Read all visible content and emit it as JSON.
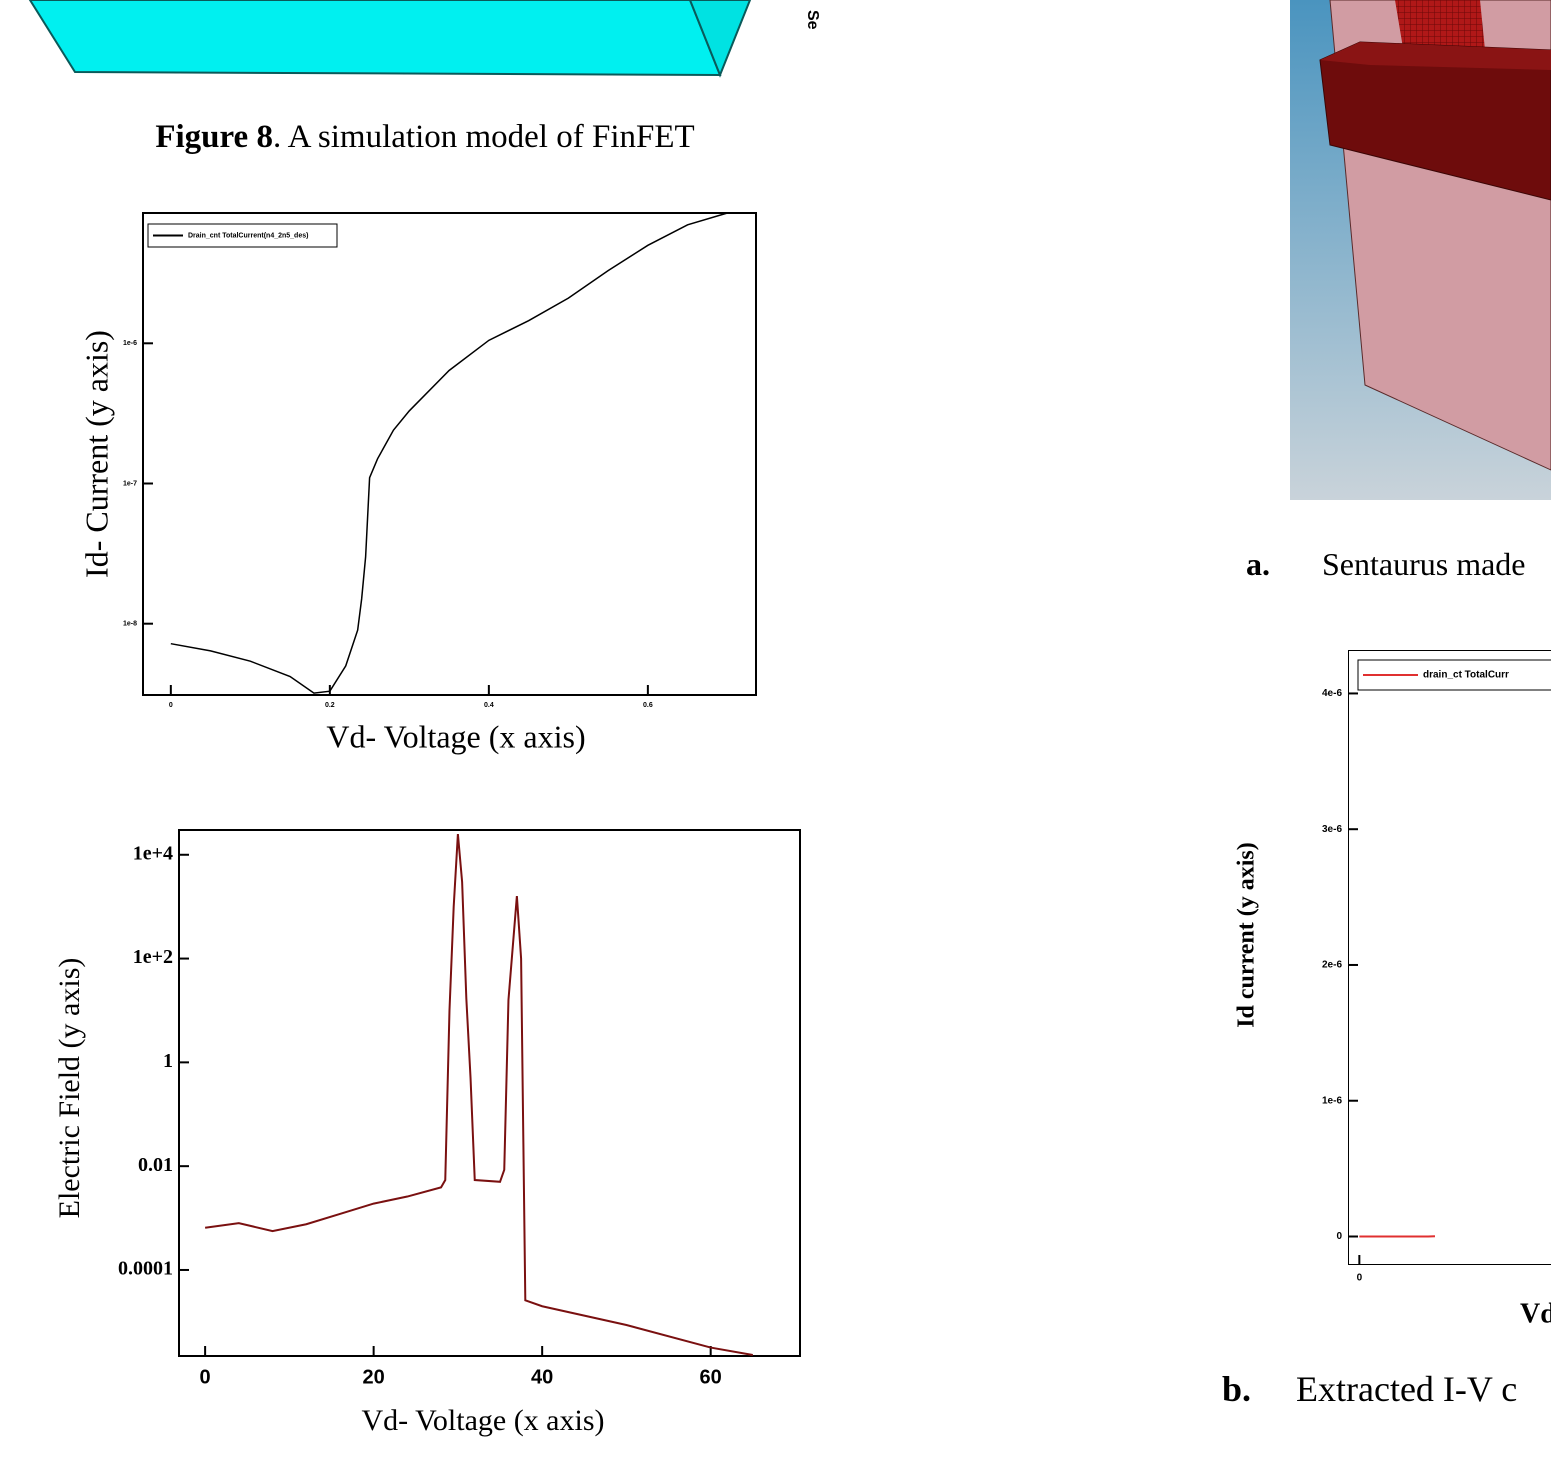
{
  "figure8_caption": {
    "label": "Figure 8",
    "text": ". A simulation model of FinFET"
  },
  "side_text": "Se",
  "caption_a": {
    "label": "a.",
    "text": "Sentaurus made"
  },
  "caption_b": {
    "label": "b.",
    "text": "Extracted I-V c"
  },
  "chart_data": [
    {
      "type": "line",
      "log_y": true,
      "x_label": "Vd- Voltage (x axis)",
      "y_label": "Id- Current (y axis)",
      "xlim": [
        -0.035,
        0.736
      ],
      "ylim": [
        3.1e-09,
        8.5e-06
      ],
      "xticks": [
        0,
        0.2,
        0.4,
        0.6
      ],
      "yticks": [
        {
          "value": 1e-08,
          "label": "1e-8"
        },
        {
          "value": 1e-07,
          "label": "1e-7"
        },
        {
          "value": 1e-06,
          "label": "1e-6"
        }
      ],
      "x": [
        0,
        0.05,
        0.1,
        0.15,
        0.18,
        0.2,
        0.22,
        0.235,
        0.24,
        0.245,
        0.25,
        0.26,
        0.28,
        0.3,
        0.35,
        0.4,
        0.45,
        0.5,
        0.55,
        0.6,
        0.65,
        0.7
      ],
      "series": [
        {
          "name": "Drain_cnt TotalCurrent(n4_2n5_des)",
          "color": "#000000",
          "values": [
            7.2e-09,
            6.4e-09,
            5.4e-09,
            4.2e-09,
            3.2e-09,
            3.3e-09,
            5e-09,
            9e-09,
            1.5e-08,
            3e-08,
            1.1e-07,
            1.5e-07,
            2.4e-07,
            3.3e-07,
            6.4e-07,
            1.05e-06,
            1.45e-06,
            2.1e-06,
            3.3e-06,
            5e-06,
            7e-06,
            8.5e-06
          ]
        }
      ]
    },
    {
      "type": "line",
      "log_y": true,
      "x_label": "Vd- Voltage (x axis)",
      "y_label": "Electric Field (y axis)",
      "xlim": [
        -3.1,
        70.6
      ],
      "ylim": [
        2.2e-06,
        30000
      ],
      "xticks": [
        0,
        20,
        40,
        60
      ],
      "yticks": [
        {
          "value": 10000,
          "label": "1e+4"
        },
        {
          "value": 100,
          "label": "1e+2"
        },
        1,
        0.01,
        {
          "value": 0.0001,
          "label": "0.0001"
        }
      ],
      "x": [
        0,
        4,
        8,
        12,
        16,
        20,
        24,
        28,
        28.5,
        29,
        29.5,
        30,
        30.5,
        31,
        31.5,
        32,
        35,
        35.5,
        36,
        37,
        37.5,
        38,
        40,
        50,
        60,
        65
      ],
      "series": [
        {
          "name": "Electric Field",
          "color": "#7a1010",
          "values": [
            0.00065,
            0.0008,
            0.00056,
            0.00076,
            0.0012,
            0.0019,
            0.0026,
            0.0039,
            0.0054,
            10,
            1000,
            25000,
            3000,
            17,
            0.5,
            0.0054,
            0.005,
            0.0085,
            16,
            1600,
            100,
            2.6e-05,
            2e-05,
            8.7e-06,
            3.2e-06,
            2.3e-06
          ]
        }
      ]
    },
    {
      "type": "line",
      "log_y": false,
      "x_label": "Vd",
      "y_label": "Id current (y axis)",
      "xlim": [
        -0.033,
        0.7
      ],
      "ylim": [
        -2.1e-07,
        4.32e-06
      ],
      "xticks": [
        0
      ],
      "yticks": [
        0,
        {
          "value": 1e-06,
          "label": "1e-6"
        },
        {
          "value": 2e-06,
          "label": "2e-6"
        },
        {
          "value": 3e-06,
          "label": "3e-6"
        },
        {
          "value": 4e-06,
          "label": "4e-6"
        }
      ],
      "x": [
        0,
        0.1,
        0.2,
        0.22
      ],
      "series": [
        {
          "name": "drain_ct TotalCurr",
          "color": "#e03030",
          "values": [
            0,
            0,
            0,
            2e-09
          ]
        }
      ]
    }
  ]
}
